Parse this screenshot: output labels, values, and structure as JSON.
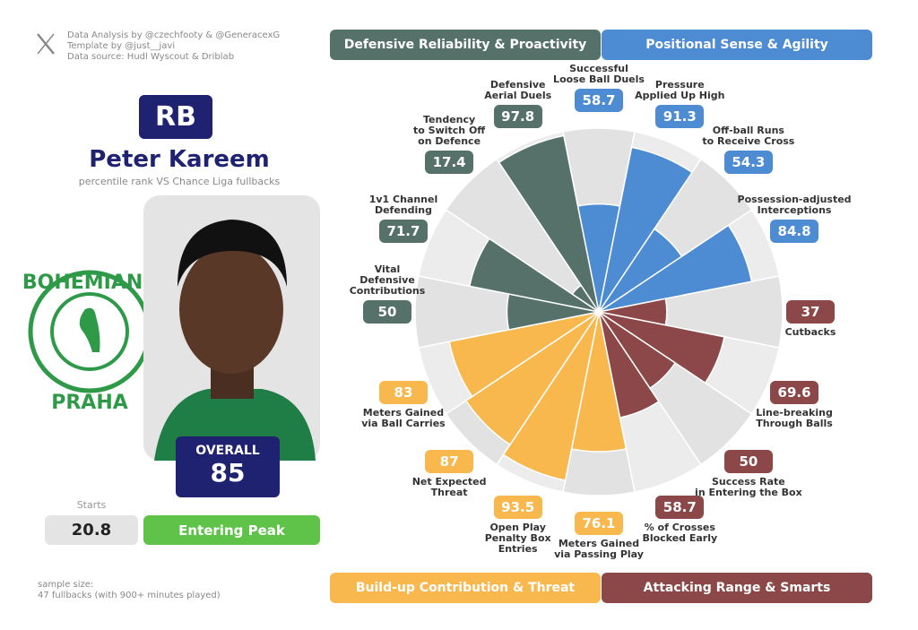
{
  "header": {
    "credits": [
      "Data Analysis by @czechfooty & @GeneracexG",
      "Template by @just__javi",
      "Data source: Hudl Wyscout & Driblab"
    ]
  },
  "player": {
    "position": "RB",
    "name": "Peter Kareem",
    "subtitle": "percentile rank VS Chance Liga fullbacks",
    "overall_label": "OVERALL",
    "overall": 85,
    "starts_label": "Starts",
    "starts": 20.8,
    "status": "Entering Peak"
  },
  "logo": {
    "top": "BOHEMIANS",
    "bottom": "PRAHA"
  },
  "footer": {
    "sample_size": [
      "sample size:",
      "47 fullbacks (with 900+ minutes played)"
    ]
  },
  "chart_data": {
    "type": "pizza",
    "ylim": [
      0,
      100
    ],
    "series": [
      {
        "name": "Positional Sense & Agility",
        "color": "#4d8bd3",
        "categories": [
          "Successful\nLoose Ball Duels",
          "Pressure\nApplied Up High",
          "Off-ball Runs\nto Receive Cross",
          "Possession-adjusted\nInterceptions"
        ],
        "values": [
          58.7,
          91.3,
          54.3,
          84.8
        ]
      },
      {
        "name": "Attacking Range & Smarts",
        "color": "#8c4848",
        "categories": [
          "Cutbacks",
          "Line-breaking\nThrough Balls",
          "Success Rate\nin Entering the Box",
          "% of Crosses\nBlocked Early"
        ],
        "values": [
          37,
          69.6,
          50,
          58.7
        ]
      },
      {
        "name": "Build-up Contribution & Threat",
        "color": "#f8b84e",
        "categories": [
          "Meters Gained\nvia Passing Play",
          "Open Play\nPenalty Box\nEntries",
          "Net Expected\nThreat",
          "Meters Gained\nvia Ball Carries"
        ],
        "values": [
          76.1,
          93.5,
          87,
          83
        ]
      },
      {
        "name": "Defensive Reliability & Proactivity",
        "color": "#56716a",
        "categories": [
          "Vital\nDefensive\nContributions",
          "1v1 Channel\nDefending",
          "Tendency\nto Switch Off\non Defence",
          "Defensive\nAerial Duels"
        ],
        "values": [
          50,
          71.7,
          17.4,
          97.8
        ]
      }
    ]
  }
}
